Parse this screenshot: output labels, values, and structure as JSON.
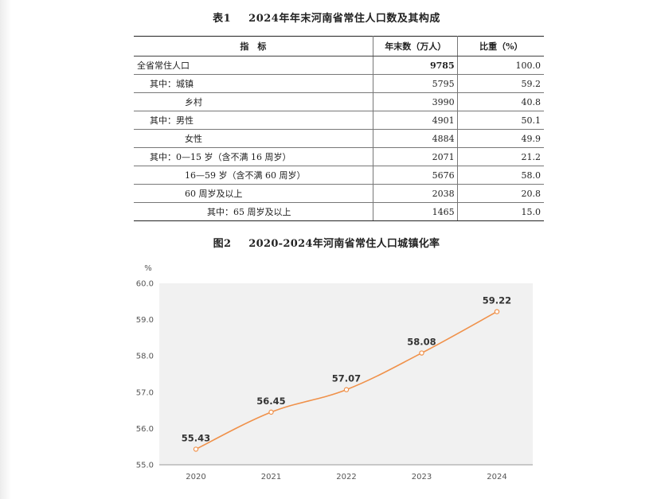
{
  "table": {
    "number": "表1",
    "title": "2024年年末河南省常住人口数及其构成",
    "headers": [
      "指　标",
      "年末数（万人）",
      "比重（%）"
    ],
    "rows": [
      {
        "label": "全省常住人口",
        "value": "9785",
        "share": "100.0",
        "indent": 0,
        "bold_value": true
      },
      {
        "label": "其中：城镇",
        "value": "5795",
        "share": "59.2",
        "indent": 1
      },
      {
        "label": "乡村",
        "value": "3990",
        "share": "40.8",
        "indent": 2
      },
      {
        "label": "其中：男性",
        "value": "4901",
        "share": "50.1",
        "indent": 1
      },
      {
        "label": "女性",
        "value": "4884",
        "share": "49.9",
        "indent": 2
      },
      {
        "label": "其中：0—15 岁（含不满 16 周岁）",
        "value": "2071",
        "share": "21.2",
        "indent": 1
      },
      {
        "label": "16—59 岁（含不满 60 周岁）",
        "value": "5676",
        "share": "58.0",
        "indent": 2
      },
      {
        "label": "60 周岁及以上",
        "value": "2038",
        "share": "20.8",
        "indent": 2
      },
      {
        "label": "其中：65 周岁及以上",
        "value": "1465",
        "share": "15.0",
        "indent": 3
      }
    ]
  },
  "figure": {
    "number": "图2",
    "title": "2020-2024年河南省常住人口城镇化率"
  },
  "chart_data": {
    "type": "line",
    "title": "2020-2024年河南省常住人口城镇化率",
    "x": [
      "2020",
      "2021",
      "2022",
      "2023",
      "2024"
    ],
    "series": [
      {
        "values": [
          55.43,
          56.45,
          57.07,
          58.08,
          59.22
        ],
        "color": "#f0914a"
      }
    ],
    "data_labels": [
      "55.43",
      "56.45",
      "57.07",
      "58.08",
      "59.22"
    ],
    "yunit": "%",
    "ylim": [
      55.0,
      60.0
    ],
    "yticks": [
      "55.0",
      "56.0",
      "57.0",
      "58.0",
      "59.0",
      "60.0"
    ],
    "grid": false,
    "plot_background": "#f1f1f1"
  }
}
